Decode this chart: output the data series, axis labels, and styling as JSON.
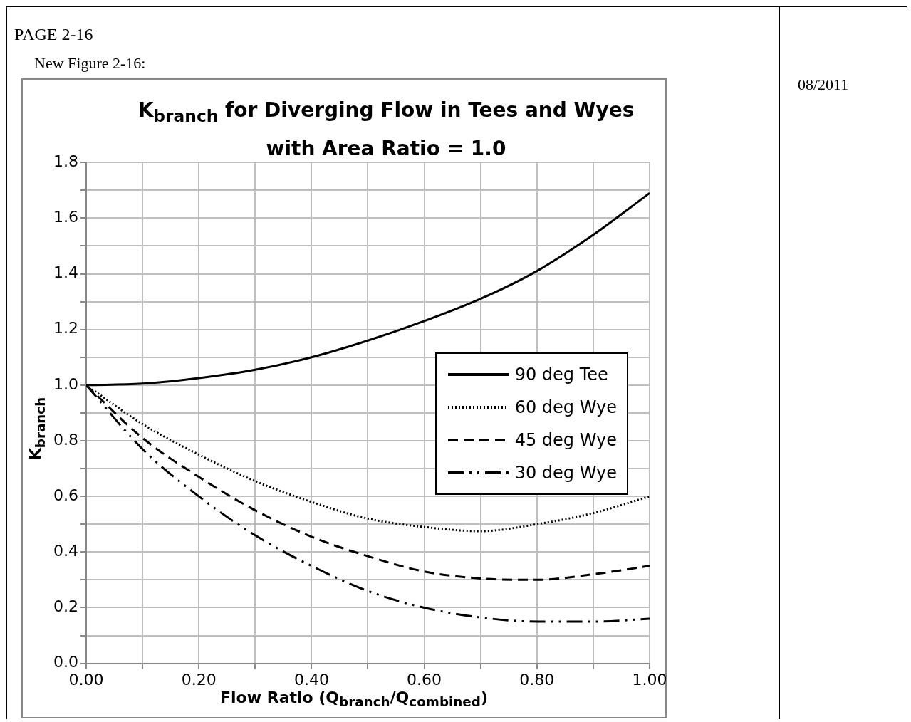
{
  "chart_data": {
    "type": "line",
    "title": "K$_{branch}$ for Diverging Flow in Tees and Wyes with Area Ratio = 1.0",
    "xlabel": "Flow Ratio (Q$_{branch}$/Q$_{combined}$)",
    "ylabel": "K$_{branch}$",
    "annotations": [
      "PAGE 2-16",
      "New Figure 2-16:",
      "08/2011"
    ],
    "x": [
      0,
      0.1,
      0.2,
      0.3,
      0.4,
      0.5,
      0.6,
      0.7,
      0.8,
      0.9,
      1.0
    ],
    "series": [
      {
        "name": "90 deg Tee",
        "color": "#000000",
        "line_style": "solid",
        "values": [
          1.0,
          1.005,
          1.025,
          1.055,
          1.1,
          1.16,
          1.23,
          1.31,
          1.41,
          1.54,
          1.69
        ]
      },
      {
        "name": "60 deg Wye",
        "color": "#000000",
        "line_style": "dotted",
        "values": [
          1.0,
          0.86,
          0.75,
          0.655,
          0.58,
          0.52,
          0.49,
          0.475,
          0.5,
          0.54,
          0.6
        ]
      },
      {
        "name": "45 deg Wye",
        "color": "#000000",
        "line_style": "dashed",
        "values": [
          1.0,
          0.81,
          0.67,
          0.55,
          0.455,
          0.385,
          0.33,
          0.305,
          0.3,
          0.32,
          0.35
        ]
      },
      {
        "name": "30 deg Wye",
        "color": "#000000",
        "line_style": "dashdot",
        "values": [
          1.0,
          0.77,
          0.6,
          0.46,
          0.35,
          0.26,
          0.2,
          0.165,
          0.15,
          0.15,
          0.16
        ]
      }
    ],
    "xlim": [
      0,
      1
    ],
    "xticks": [
      {
        "value": 0,
        "label": "0.00"
      },
      {
        "value": 0.1,
        "label": null
      },
      {
        "value": 0.2,
        "label": "0.20"
      },
      {
        "value": 0.3,
        "label": null
      },
      {
        "value": 0.4,
        "label": "0.40"
      },
      {
        "value": 0.5,
        "label": null
      },
      {
        "value": 0.6,
        "label": "0.60"
      },
      {
        "value": 0.7,
        "label": null
      },
      {
        "value": 0.8,
        "label": "0.80"
      },
      {
        "value": 0.9,
        "label": null
      },
      {
        "value": 1,
        "label": "1.00"
      }
    ],
    "ylim": [
      0,
      1.8
    ],
    "yticks": [
      {
        "value": 0,
        "label": "0.0"
      },
      {
        "value": 0.1,
        "label": null
      },
      {
        "value": 0.2,
        "label": "0.2"
      },
      {
        "value": 0.3,
        "label": null
      },
      {
        "value": 0.4,
        "label": "0.4"
      },
      {
        "value": 0.5,
        "label": null
      },
      {
        "value": 0.6,
        "label": "0.6"
      },
      {
        "value": 0.7,
        "label": null
      },
      {
        "value": 0.8,
        "label": "0.8"
      },
      {
        "value": 0.9,
        "label": null
      },
      {
        "value": 1.0,
        "label": "1.0"
      },
      {
        "value": 1.1,
        "label": null
      },
      {
        "value": 1.2,
        "label": "1.2"
      },
      {
        "value": 1.3,
        "label": null
      },
      {
        "value": 1.4,
        "label": "1.4"
      },
      {
        "value": 1.5,
        "label": null
      },
      {
        "value": 1.6,
        "label": "1.6"
      },
      {
        "value": 1.7,
        "label": null
      },
      {
        "value": 1.8,
        "label": "1.8"
      }
    ],
    "grid": true,
    "legend": "right",
    "marker": "none"
  }
}
